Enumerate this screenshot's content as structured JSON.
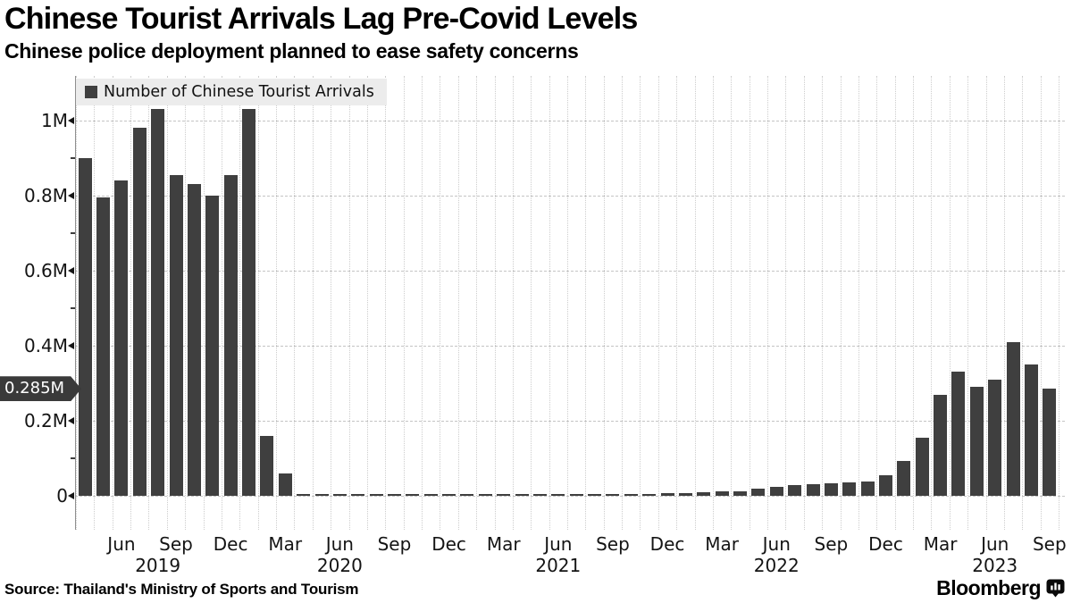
{
  "header": {
    "title": "Chinese Tourist Arrivals Lag Pre-Covid Levels",
    "subtitle": "Chinese police deployment planned to ease safety concerns"
  },
  "legend": {
    "label": "Number of Chinese Tourist Arrivals"
  },
  "y_axis": {
    "tick_labels": [
      "1M",
      "0.8M",
      "0.6M",
      "0.4M",
      "0.2M",
      "0"
    ],
    "tick_values": [
      1.0,
      0.8,
      0.6,
      0.4,
      0.2,
      0
    ],
    "minor_tick_values": [
      0.9,
      0.7,
      0.5,
      0.3,
      0.1
    ],
    "marker": {
      "label": "0.285M",
      "value": 0.285
    }
  },
  "x_axis": {
    "month_labels": [
      {
        "text": "Jun",
        "month_index": 2
      },
      {
        "text": "Sep",
        "month_index": 5
      },
      {
        "text": "Dec",
        "month_index": 8
      },
      {
        "text": "Mar",
        "month_index": 11
      },
      {
        "text": "Jun",
        "month_index": 14
      },
      {
        "text": "Sep",
        "month_index": 17
      },
      {
        "text": "Dec",
        "month_index": 20
      },
      {
        "text": "Mar",
        "month_index": 23
      },
      {
        "text": "Jun",
        "month_index": 26
      },
      {
        "text": "Sep",
        "month_index": 29
      },
      {
        "text": "Dec",
        "month_index": 32
      },
      {
        "text": "Mar",
        "month_index": 35
      },
      {
        "text": "Jun",
        "month_index": 38
      },
      {
        "text": "Sep",
        "month_index": 41
      },
      {
        "text": "Dec",
        "month_index": 44
      },
      {
        "text": "Mar",
        "month_index": 47
      },
      {
        "text": "Jun",
        "month_index": 50
      },
      {
        "text": "Sep",
        "month_index": 53
      }
    ],
    "year_labels": [
      {
        "text": "2019",
        "month_index": 4
      },
      {
        "text": "2020",
        "month_index": 14
      },
      {
        "text": "2021",
        "month_index": 26
      },
      {
        "text": "2022",
        "month_index": 38
      },
      {
        "text": "2023",
        "month_index": 50
      }
    ]
  },
  "footer": {
    "source": "Source: Thailand's Ministry of Sports and Tourism",
    "brand_wordmark": "Bloomberg",
    "brand_icon": "bloomberg-terminal-icon"
  },
  "colors": {
    "bar": "#3f3f3f",
    "grid": "#cdcdcd",
    "axis": "#8f8f8f",
    "legend_background": "#ececec",
    "badge_background": "#3a3a3a",
    "badge_text": "#ffffff"
  },
  "chart_data": {
    "type": "bar",
    "title": "Chinese Tourist Arrivals Lag Pre-Covid Levels",
    "subtitle": "Chinese police deployment planned to ease safety concerns",
    "series_name": "Number of Chinese Tourist Arrivals",
    "unit": "millions of arrivals per month",
    "ylim": [
      0,
      1.1
    ],
    "grid": true,
    "legend_position": "top-left",
    "latest_value_marker": 0.285,
    "x": [
      "Apr 2019",
      "May 2019",
      "Jun 2019",
      "Jul 2019",
      "Aug 2019",
      "Sep 2019",
      "Oct 2019",
      "Nov 2019",
      "Dec 2019",
      "Jan 2020",
      "Feb 2020",
      "Mar 2020",
      "Apr 2020",
      "May 2020",
      "Jun 2020",
      "Jul 2020",
      "Aug 2020",
      "Sep 2020",
      "Oct 2020",
      "Nov 2020",
      "Dec 2020",
      "Jan 2021",
      "Feb 2021",
      "Mar 2021",
      "Apr 2021",
      "May 2021",
      "Jun 2021",
      "Jul 2021",
      "Aug 2021",
      "Sep 2021",
      "Oct 2021",
      "Nov 2021",
      "Dec 2021",
      "Jan 2022",
      "Feb 2022",
      "Mar 2022",
      "Apr 2022",
      "May 2022",
      "Jun 2022",
      "Jul 2022",
      "Aug 2022",
      "Sep 2022",
      "Oct 2022",
      "Nov 2022",
      "Dec 2022",
      "Jan 2023",
      "Feb 2023",
      "Mar 2023",
      "Apr 2023",
      "May 2023",
      "Jun 2023",
      "Jul 2023",
      "Aug 2023",
      "Sep 2023"
    ],
    "values": [
      0.9,
      0.795,
      0.84,
      0.98,
      1.03,
      0.855,
      0.83,
      0.8,
      0.855,
      1.03,
      0.16,
      0.06,
      0.003,
      0.003,
      0.003,
      0.003,
      0.003,
      0.003,
      0.003,
      0.003,
      0.004,
      0.004,
      0.004,
      0.004,
      0.004,
      0.004,
      0.004,
      0.004,
      0.004,
      0.004,
      0.004,
      0.005,
      0.006,
      0.007,
      0.009,
      0.011,
      0.013,
      0.018,
      0.024,
      0.028,
      0.031,
      0.033,
      0.036,
      0.038,
      0.055,
      0.094,
      0.155,
      0.27,
      0.33,
      0.29,
      0.31,
      0.41,
      0.35,
      0.285
    ]
  }
}
